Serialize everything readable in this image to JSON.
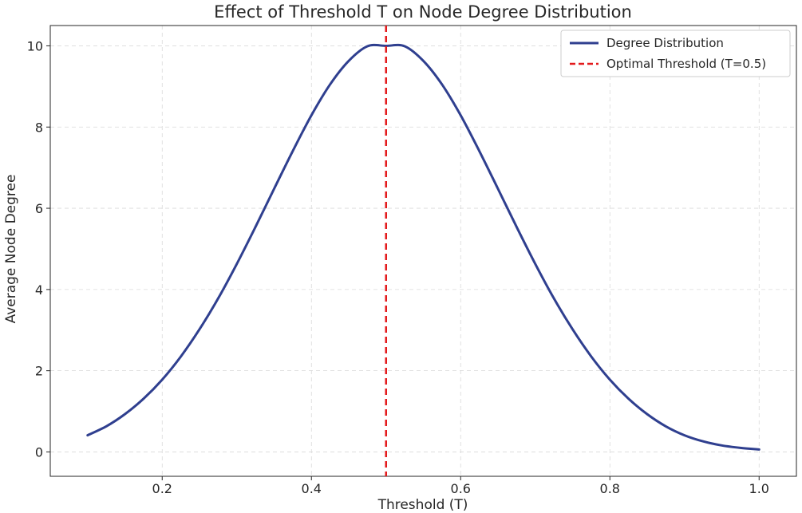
{
  "chart_data": {
    "type": "line",
    "title": "Effect of Threshold T on Node Degree Distribution",
    "xlabel": "Threshold (T)",
    "ylabel": "Average Node Degree",
    "xlim": [
      0.05,
      1.05
    ],
    "ylim": [
      -0.6,
      10.5
    ],
    "xticks": [
      0.2,
      0.4,
      0.6,
      0.8,
      1.0
    ],
    "xtick_labels": [
      "0.2",
      "0.4",
      "0.6",
      "0.8",
      "1.0"
    ],
    "yticks": [
      0,
      2,
      4,
      6,
      8,
      10
    ],
    "ytick_labels": [
      "0",
      "2",
      "4",
      "6",
      "8",
      "10"
    ],
    "grid": true,
    "legend_position": "top-right",
    "series": [
      {
        "name": "Degree Distribution",
        "color": "#2f3f8f",
        "style": "solid",
        "x": [
          0.1,
          0.125,
          0.15,
          0.175,
          0.2,
          0.225,
          0.25,
          0.275,
          0.3,
          0.325,
          0.35,
          0.375,
          0.4,
          0.425,
          0.45,
          0.475,
          0.5,
          0.525,
          0.55,
          0.575,
          0.6,
          0.625,
          0.65,
          0.675,
          0.7,
          0.725,
          0.75,
          0.775,
          0.8,
          0.825,
          0.85,
          0.875,
          0.9,
          0.925,
          0.95,
          0.975,
          1.0
        ],
        "y": [
          0.41,
          0.63,
          0.93,
          1.31,
          1.78,
          2.35,
          3.02,
          3.78,
          4.63,
          5.54,
          6.48,
          7.41,
          8.29,
          9.05,
          9.63,
          9.99,
          10.0,
          9.99,
          9.63,
          9.05,
          8.29,
          7.41,
          6.48,
          5.54,
          4.63,
          3.78,
          3.02,
          2.35,
          1.78,
          1.31,
          0.93,
          0.63,
          0.41,
          0.26,
          0.16,
          0.1,
          0.06
        ]
      },
      {
        "name": "Optimal Threshold (T=0.5)",
        "color": "#e31a1c",
        "style": "dashed",
        "vertical_line_x": 0.5
      }
    ]
  }
}
